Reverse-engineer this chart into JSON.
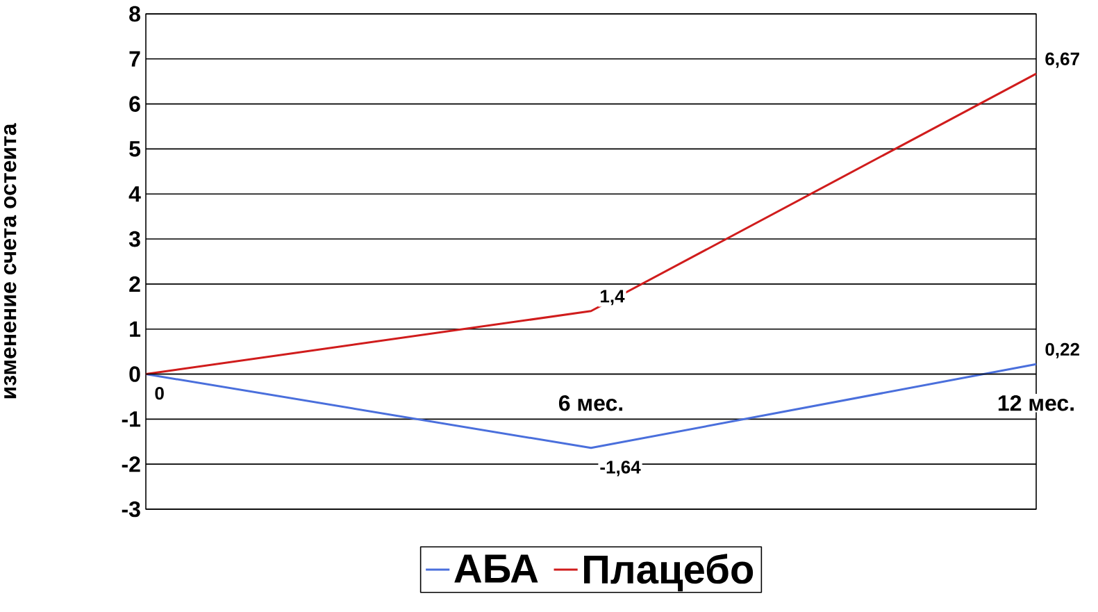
{
  "chart_data": {
    "type": "line",
    "ylabel": "изменение счета остеита",
    "categories": [
      null,
      "6 мес.",
      "12 мес."
    ],
    "series": [
      {
        "name": "АБА",
        "color": "#4a6fdc",
        "values": [
          0,
          -1.64,
          0.22
        ],
        "value_labels": [
          "0",
          "-1,64",
          "0,22"
        ]
      },
      {
        "name": "Плацебо",
        "color": "#d01c1c",
        "values": [
          0,
          1.4,
          6.67
        ],
        "value_labels": [
          null,
          "1,4",
          "6,67"
        ]
      }
    ],
    "ylim": [
      -3,
      8
    ],
    "yticks": [
      -3,
      -2,
      -1,
      0,
      1,
      2,
      3,
      4,
      5,
      6,
      7,
      8
    ],
    "grid": "y",
    "legend": "bottom",
    "marker": "none",
    "line_style": "solid"
  }
}
